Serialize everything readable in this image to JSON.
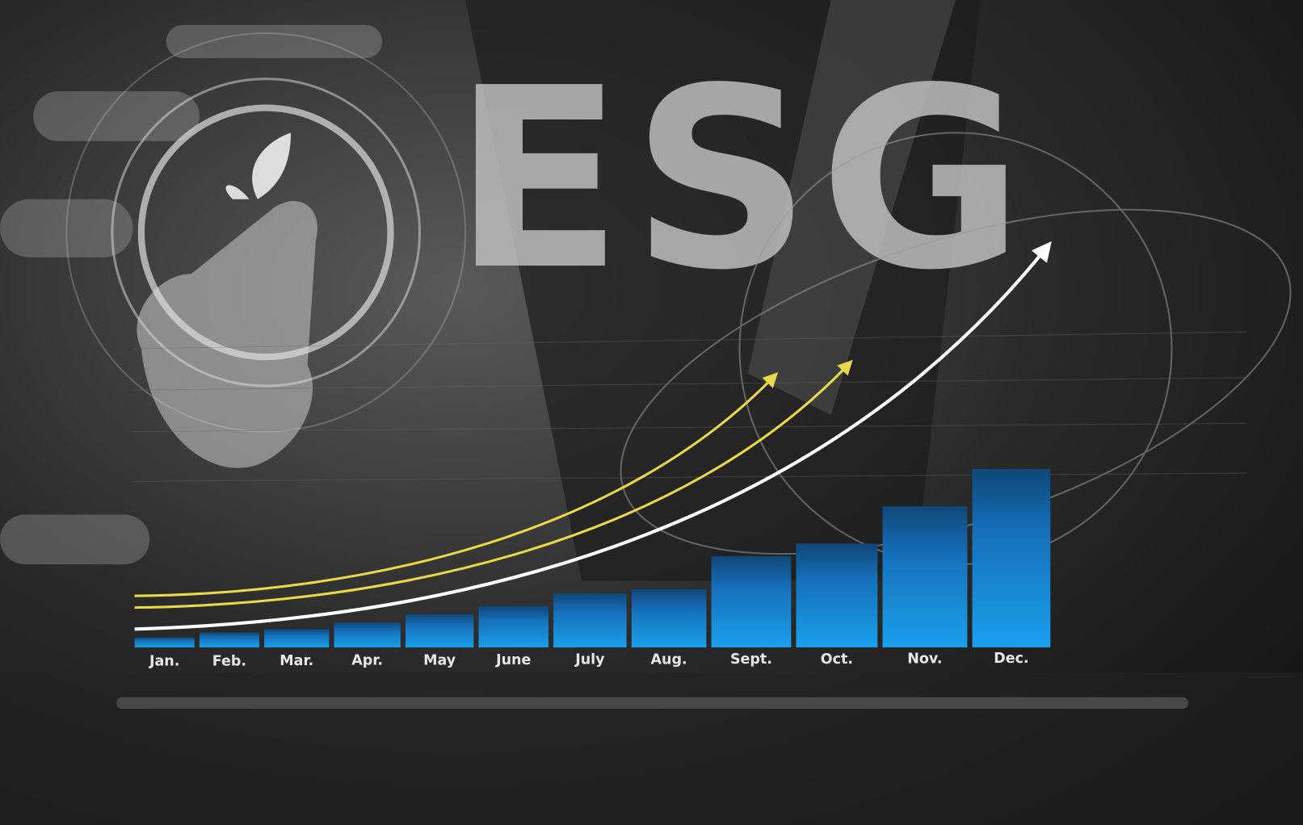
{
  "chart_data": {
    "type": "bar",
    "title": "ESG",
    "categories": [
      "Jan.",
      "Feb.",
      "Mar.",
      "Apr.",
      "May",
      "June",
      "July",
      "Aug.",
      "Sept.",
      "Oct.",
      "Nov.",
      "Dec."
    ],
    "values": [
      12,
      18,
      22,
      30,
      40,
      50,
      65,
      70,
      110,
      125,
      170,
      215
    ],
    "color": "#1a8fe0"
  }
}
